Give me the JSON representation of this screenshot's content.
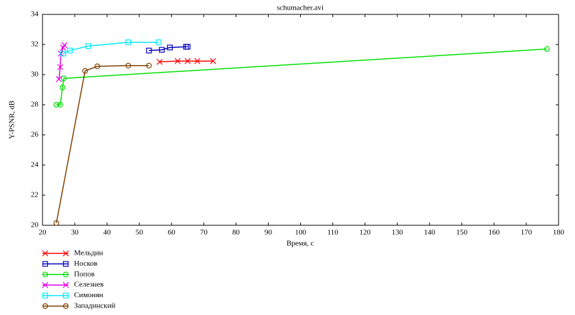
{
  "chart_data": {
    "type": "line",
    "title": "schumacher.avi",
    "xlabel": "Время, с",
    "ylabel": "Y-PSNR, dB",
    "xlim": [
      20,
      180
    ],
    "ylim": [
      20,
      34
    ],
    "xticks": [
      20,
      30,
      40,
      50,
      60,
      70,
      80,
      90,
      100,
      110,
      120,
      130,
      140,
      150,
      160,
      170,
      180
    ],
    "yticks": [
      20,
      22,
      24,
      26,
      28,
      30,
      32,
      34
    ],
    "grid": false,
    "legend": "below-left",
    "series": [
      {
        "name": "Мельдин",
        "color": "#ff0000",
        "marker": "x",
        "x": [
          56.3,
          61.9,
          65.0,
          68.0,
          72.9
        ],
        "values": [
          30.85,
          30.9,
          30.9,
          30.9,
          30.9
        ]
      },
      {
        "name": "Носков",
        "color": "#0000c0",
        "marker": "square",
        "x": [
          53.0,
          57.0,
          59.5,
          64.5,
          65.0
        ],
        "values": [
          31.6,
          31.65,
          31.8,
          31.85,
          31.85
        ]
      },
      {
        "name": "Попов",
        "color": "#00e000",
        "marker": "circle",
        "x": [
          24.3,
          25.5,
          26.2,
          26.6,
          176.4
        ],
        "values": [
          28.0,
          28.0,
          29.15,
          29.75,
          31.7
        ]
      },
      {
        "name": "Селезнев",
        "color": "#e000e0",
        "marker": "x",
        "x": [
          25.1,
          25.5,
          25.7,
          26.4,
          26.8
        ],
        "values": [
          29.7,
          30.5,
          31.4,
          31.8,
          31.95
        ]
      },
      {
        "name": "Симонян",
        "color": "#00e8ff",
        "marker": "square",
        "x": [
          26.4,
          28.5,
          34.2,
          46.6,
          56.0
        ],
        "values": [
          31.4,
          31.6,
          31.9,
          32.15,
          32.15
        ]
      },
      {
        "name": "Западинский",
        "color": "#804000",
        "marker": "circle",
        "x": [
          24.3,
          33.2,
          37.0,
          46.6,
          53.0
        ],
        "values": [
          20.15,
          30.25,
          30.55,
          30.6,
          30.6
        ]
      }
    ]
  }
}
